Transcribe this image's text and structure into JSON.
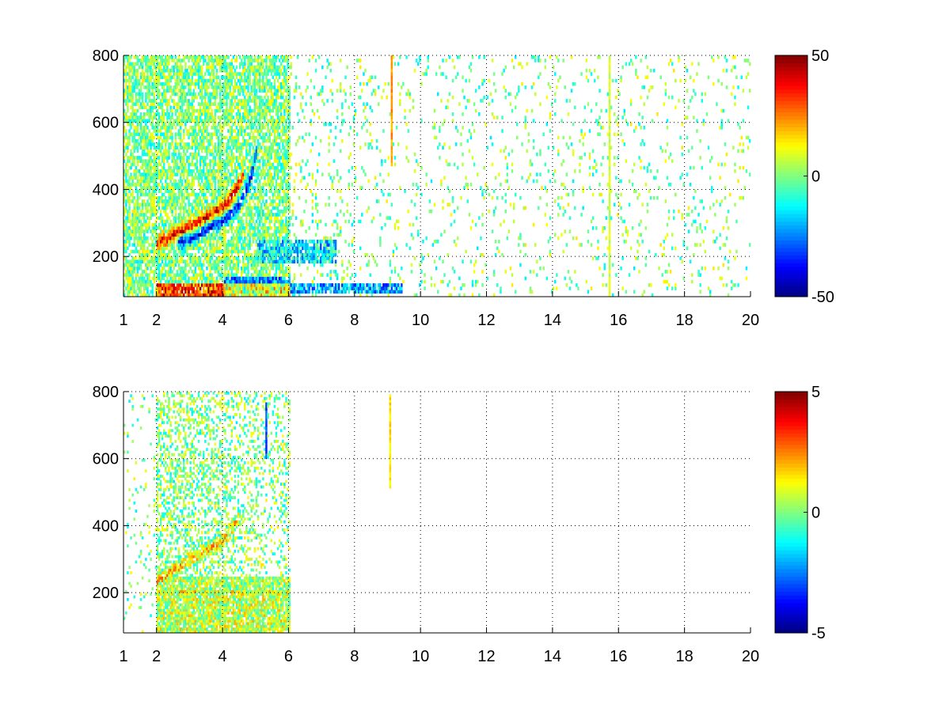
{
  "chart_data": [
    {
      "type": "heatmap",
      "title": "",
      "xlabel": "",
      "ylabel": "",
      "xlim": [
        1,
        20
      ],
      "ylim": [
        80,
        800
      ],
      "xticks": [
        1,
        2,
        4,
        6,
        8,
        10,
        12,
        14,
        16,
        18,
        20
      ],
      "yticks": [
        200,
        400,
        600,
        800
      ],
      "xtick_labels": [
        "1",
        "2",
        "4",
        "6",
        "8",
        "10",
        "12",
        "14",
        "16",
        "18",
        "20"
      ],
      "ytick_labels": [
        "200",
        "400",
        "600",
        "800"
      ],
      "grid": true,
      "colormap": "jet",
      "clim": [
        -50,
        50
      ],
      "colorbar_ticks": [
        -50,
        0,
        50
      ],
      "colorbar_labels": [
        "-50",
        "0",
        "50"
      ],
      "features": [
        {
          "kind": "ridge",
          "points": [
            [
              2.0,
              235
            ],
            [
              2.5,
              260
            ],
            [
              3.0,
              285
            ],
            [
              3.5,
              315
            ],
            [
              4.0,
              345
            ],
            [
              4.3,
              380
            ],
            [
              4.6,
              440
            ]
          ],
          "value": 38,
          "spread": 18
        },
        {
          "kind": "ridge",
          "points": [
            [
              2.6,
              235
            ],
            [
              3.1,
              255
            ],
            [
              3.6,
              280
            ],
            [
              4.1,
              310
            ],
            [
              4.5,
              350
            ],
            [
              4.8,
              420
            ],
            [
              5.0,
              500
            ]
          ],
          "value": -35,
          "spread": 18
        },
        {
          "kind": "band",
          "x_range": [
            2.0,
            6.0
          ],
          "y_range": [
            80,
            110
          ],
          "value": 40
        },
        {
          "kind": "band",
          "x_range": [
            4.0,
            6.0
          ],
          "y_range": [
            80,
            130
          ],
          "value": -30
        },
        {
          "kind": "band",
          "x_range": [
            5.0,
            7.4
          ],
          "y_range": [
            180,
            240
          ],
          "value": -18
        },
        {
          "kind": "band",
          "x_range": [
            6.0,
            9.4
          ],
          "y_range": [
            85,
            115
          ],
          "value": -25
        },
        {
          "kind": "vline",
          "x": 9.1,
          "y_range": [
            470,
            800
          ],
          "value": 22
        },
        {
          "kind": "vline",
          "x": 15.7,
          "y_range": [
            80,
            800
          ],
          "value": 8
        }
      ]
    },
    {
      "type": "heatmap",
      "title": "",
      "xlabel": "",
      "ylabel": "",
      "xlim": [
        1,
        20
      ],
      "ylim": [
        80,
        800
      ],
      "xticks": [
        1,
        2,
        4,
        6,
        8,
        10,
        12,
        14,
        16,
        18,
        20
      ],
      "yticks": [
        200,
        400,
        600,
        800
      ],
      "xtick_labels": [
        "1",
        "2",
        "4",
        "6",
        "8",
        "10",
        "12",
        "14",
        "16",
        "18",
        "20"
      ],
      "ytick_labels": [
        "200",
        "400",
        "600",
        "800"
      ],
      "grid": true,
      "colormap": "jet",
      "clim": [
        -5,
        5
      ],
      "colorbar_ticks": [
        -5,
        0,
        5
      ],
      "colorbar_labels": [
        "-5",
        "0",
        "5"
      ],
      "features": [
        {
          "kind": "ridge",
          "points": [
            [
              2.0,
              235
            ],
            [
              2.5,
              265
            ],
            [
              3.0,
              295
            ],
            [
              3.5,
              325
            ],
            [
              4.0,
              355
            ],
            [
              4.5,
              420
            ]
          ],
          "value": 1.8,
          "spread": 15
        },
        {
          "kind": "band",
          "x_range": [
            2.0,
            6.0
          ],
          "y_range": [
            80,
            200
          ],
          "value": 0.7
        },
        {
          "kind": "band",
          "x_range": [
            2.0,
            6.0
          ],
          "y_range": [
            200,
            240
          ],
          "value": 0.4
        },
        {
          "kind": "vline",
          "x": 9.05,
          "y_range": [
            505,
            785
          ],
          "value": 1.5
        },
        {
          "kind": "vline",
          "x": 5.3,
          "y_range": [
            600,
            760
          ],
          "value": -3.0
        }
      ]
    }
  ]
}
